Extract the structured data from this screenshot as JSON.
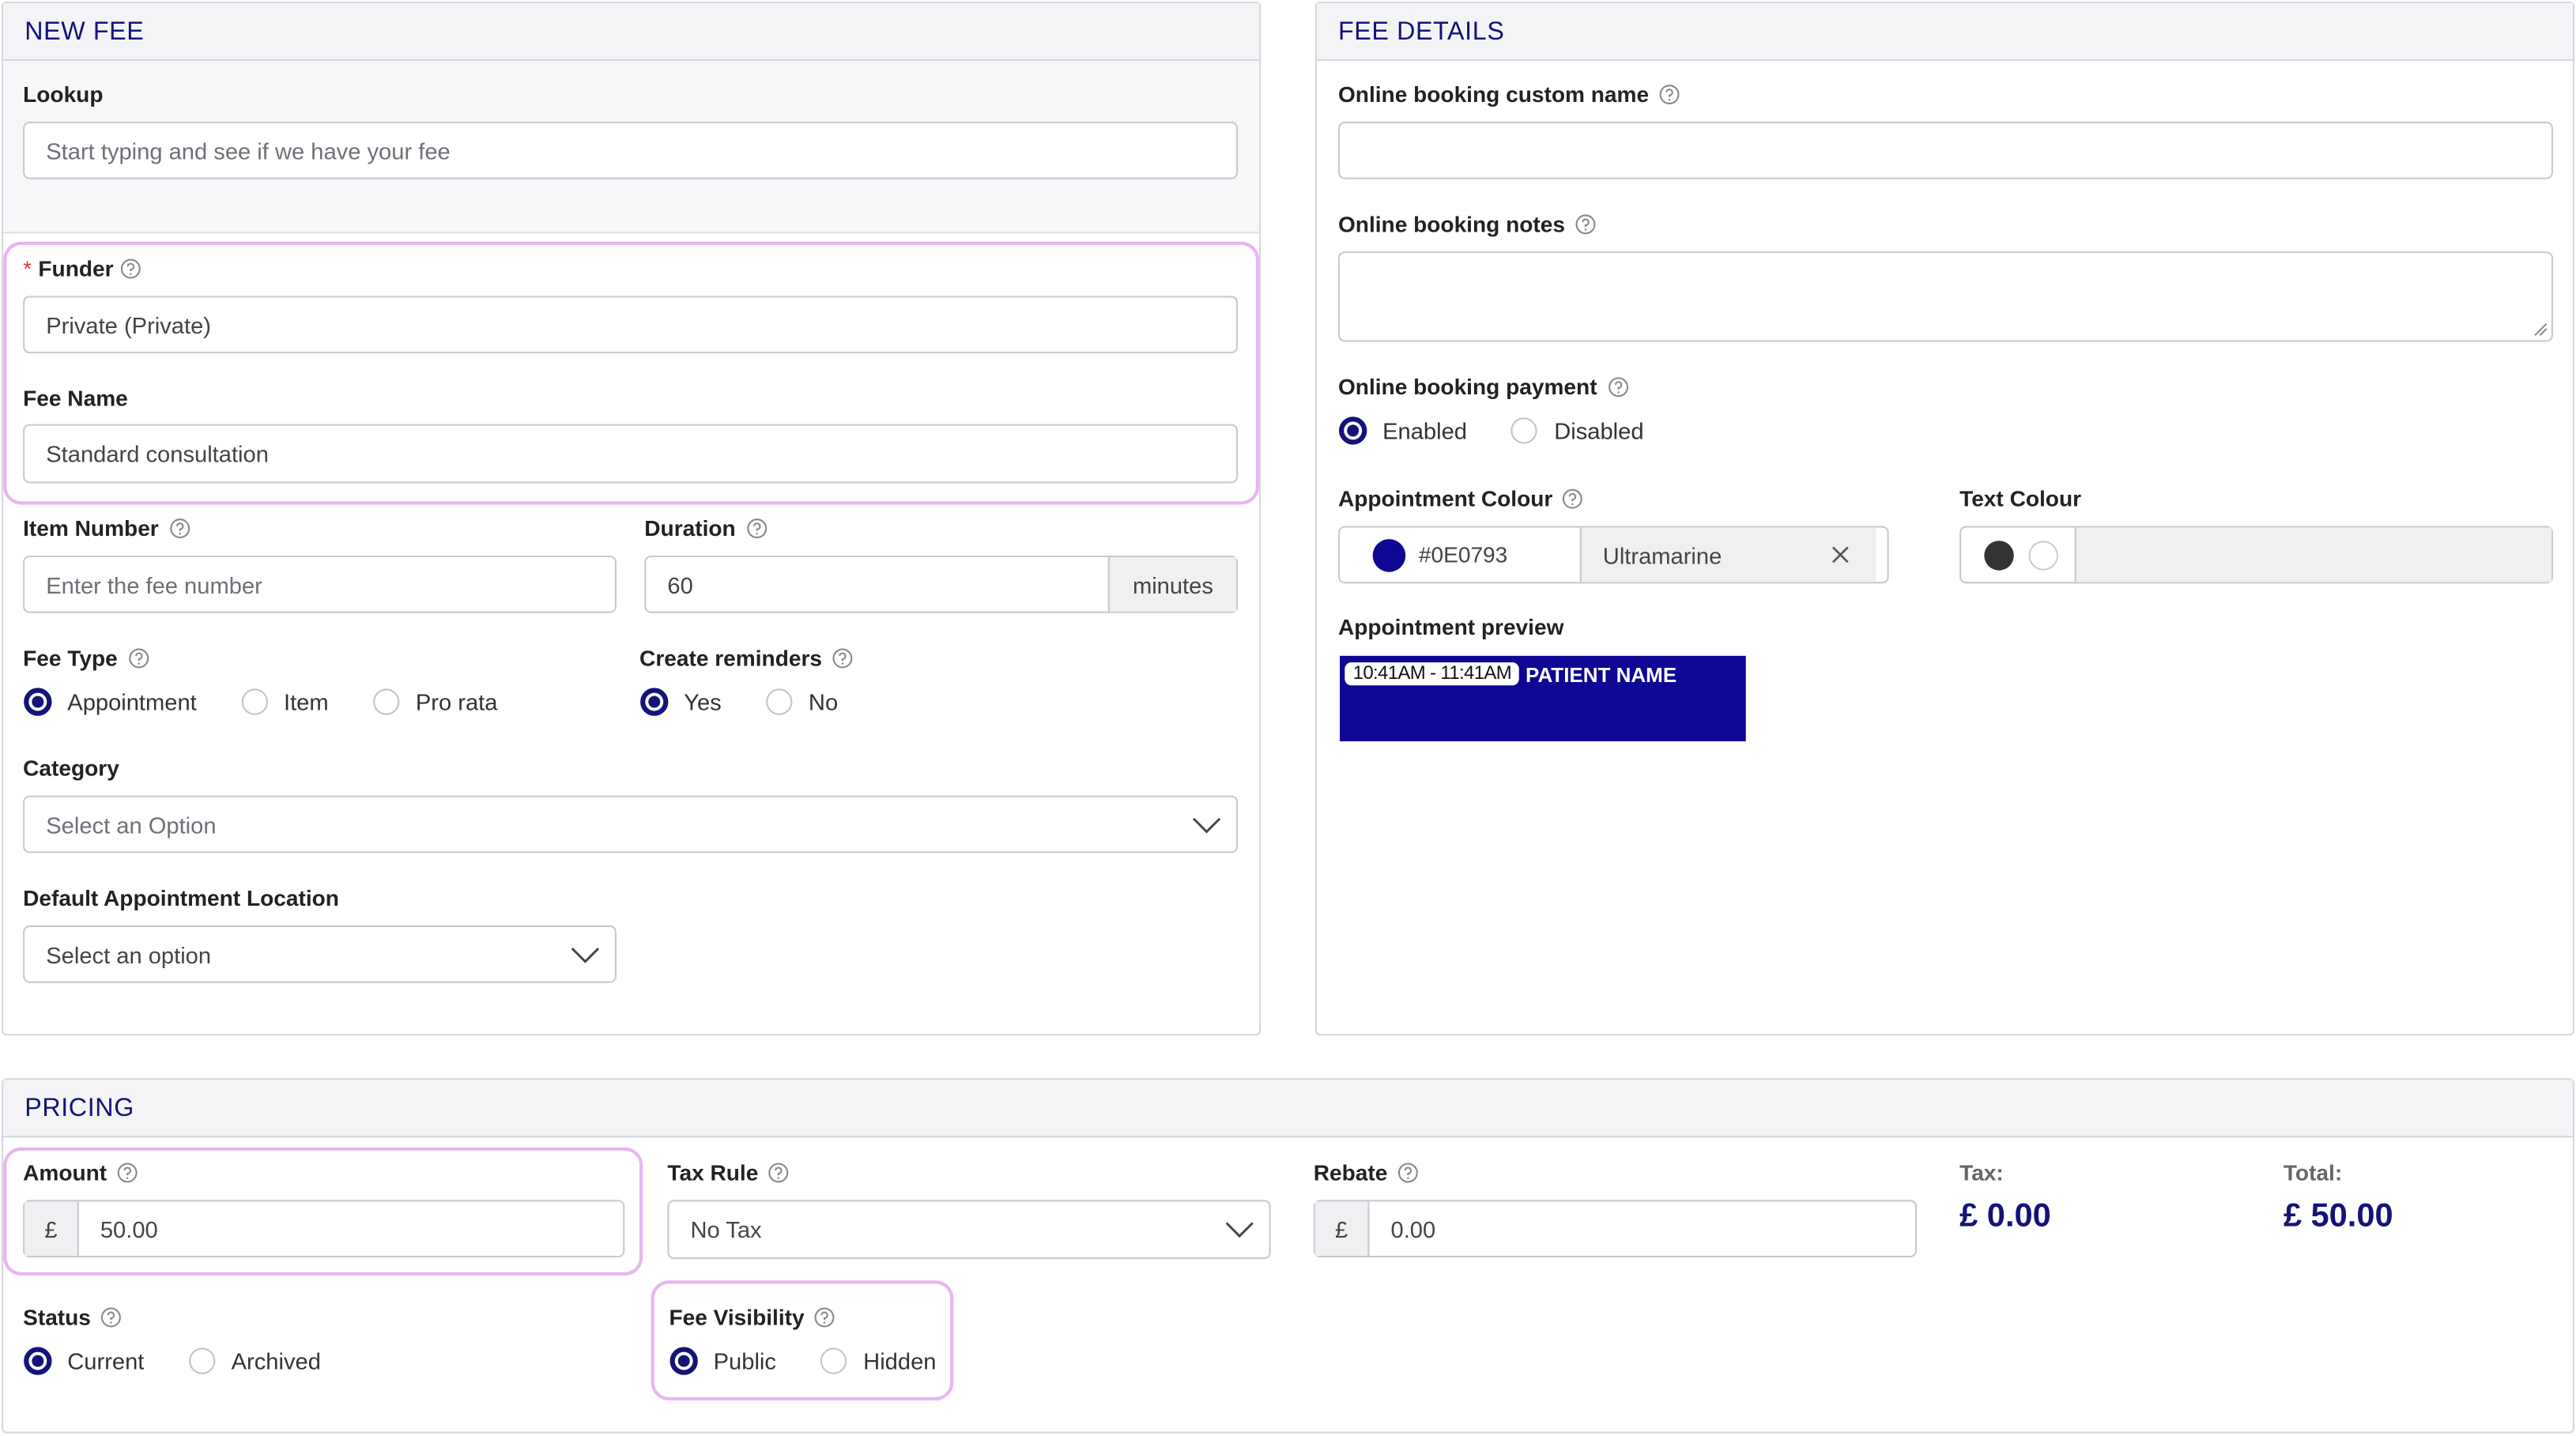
{
  "new_fee": {
    "title": "NEW FEE",
    "lookup": {
      "label": "Lookup",
      "placeholder": "Start typing and see if we have your fee"
    },
    "funder": {
      "required": "*",
      "label": "Funder",
      "value": "Private (Private)"
    },
    "fee_name": {
      "label": "Fee Name",
      "value": "Standard consultation"
    },
    "item_number": {
      "label": "Item Number",
      "placeholder": "Enter the fee number"
    },
    "duration": {
      "label": "Duration",
      "value": "60",
      "unit": "minutes"
    },
    "fee_type": {
      "label": "Fee Type",
      "options": [
        "Appointment",
        "Item",
        "Pro rata"
      ],
      "selected": 0
    },
    "create_reminders": {
      "label": "Create reminders",
      "options": [
        "Yes",
        "No"
      ],
      "selected": 0
    },
    "category": {
      "label": "Category",
      "placeholder": "Select an Option"
    },
    "default_location": {
      "label": "Default Appointment Location",
      "placeholder": "Select an option"
    }
  },
  "fee_details": {
    "title": "FEE DETAILS",
    "custom_name": {
      "label": "Online booking custom name"
    },
    "notes": {
      "label": "Online booking notes"
    },
    "payment": {
      "label": "Online booking payment",
      "options": [
        "Enabled",
        "Disabled"
      ],
      "selected": 0
    },
    "appointment_colour": {
      "label": "Appointment Colour",
      "value": "#0E0793",
      "name": "Ultramarine"
    },
    "text_colour": {
      "label": "Text Colour"
    },
    "preview": {
      "label": "Appointment preview",
      "time": "10:41AM - 11:41AM",
      "patient": "PATIENT NAME"
    }
  },
  "pricing": {
    "title": "PRICING",
    "currency": "£",
    "amount": {
      "label": "Amount",
      "value": "50.00"
    },
    "tax_rule": {
      "label": "Tax Rule",
      "value": "No Tax"
    },
    "rebate": {
      "label": "Rebate",
      "value": "0.00"
    },
    "tax": {
      "label": "Tax:",
      "value": "£ 0.00"
    },
    "total": {
      "label": "Total:",
      "value": "£ 50.00"
    },
    "status": {
      "label": "Status",
      "options": [
        "Current",
        "Archived"
      ],
      "selected": 0
    },
    "fee_visibility": {
      "label": "Fee Visibility",
      "options": [
        "Public",
        "Hidden"
      ],
      "selected": 0
    }
  }
}
